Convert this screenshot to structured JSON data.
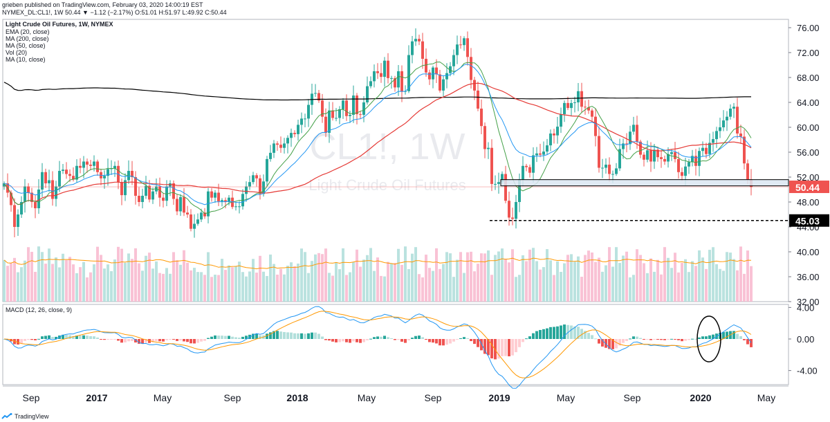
{
  "header": {
    "published_line": "grieben published on TradingView.com, February 03, 2020 14:00:19 EST",
    "quote_line": "NYMEX_DL:CL1!, 1W 50.44 ▼ −1.12 (−2.17%) O:51.01 H:51.97 L:49.92 C:50.44"
  },
  "legend": {
    "title": "Light Crude Oil Futures, 1W, NYMEX",
    "items": [
      "EMA (20, close)",
      "MA (200, close)",
      "MA (50, close)",
      "Vol (20)",
      "MA (10, close)"
    ]
  },
  "watermark": {
    "symbol": "CL1!, 1W",
    "name": "Light Crude Oil Futures"
  },
  "macd_label": "MACD (12, 26, close, 9)",
  "footer": {
    "brand": "TradingView"
  },
  "colors": {
    "up": "#26a69a",
    "down": "#ef5350",
    "ema20": "#2196f3",
    "ma200": "#000000",
    "ma50": "#e53935",
    "ma10": "#43a047",
    "vol_ma": "#ff9800",
    "macd_line": "#2196f3",
    "signal_line": "#ff9800"
  },
  "chart_data": {
    "type": "candlestick",
    "timeframe": "1W",
    "y_ticks": [
      "76.00",
      "72.00",
      "68.00",
      "64.00",
      "60.00",
      "56.00",
      "52.00",
      "48.00",
      "44.00",
      "40.00",
      "36.00",
      "32.00"
    ],
    "macd_ticks": [
      "4.00",
      "0.00",
      "-4.00"
    ],
    "x_ticks": [
      "Sep",
      "2017",
      "May",
      "Sep",
      "2018",
      "May",
      "Sep",
      "2019",
      "May",
      "Sep",
      "2020",
      "May"
    ],
    "price_range": [
      32,
      77
    ],
    "macd_range": [
      -6,
      4.5
    ],
    "last_price": 50.44,
    "horizontal_line": 45.03,
    "support_zone": [
      50.6,
      51.6
    ],
    "closes": [
      51,
      49.5,
      47.5,
      44,
      46,
      48,
      50.5,
      49.5,
      48,
      47,
      50,
      52.8,
      51,
      51.5,
      48.5,
      50.5,
      53,
      53.2,
      52.5,
      52.2,
      51.6,
      53.8,
      53.5,
      54.5,
      54,
      53.8,
      54.5,
      52.8,
      51.8,
      52.2,
      53.3,
      53.4,
      53.8,
      51.2,
      49.1,
      51.5,
      53,
      52,
      49,
      48,
      49,
      50.6,
      48.4,
      49.7,
      50.5,
      48.7,
      48.2,
      50.5,
      51,
      48.5,
      46.5,
      48.8,
      46.3,
      46,
      43.7,
      44.5,
      45.2,
      46.3,
      45.7,
      49.7,
      48.7,
      49.5,
      48.1,
      48.3,
      48,
      48.7,
      47.2,
      47.3,
      47.3,
      49.3,
      50.5,
      51.2,
      52.3,
      51.8,
      49.3,
      51.3,
      54.9,
      55.9,
      57.4,
      57.2,
      56.7,
      57.4,
      58.3,
      59.1,
      58.9,
      60.4,
      61.4,
      61.4,
      63.6,
      65.4,
      65.5,
      64.3,
      61.7,
      59.1,
      62.7,
      61.5,
      61.5,
      62.9,
      64.3,
      61.8,
      62,
      65.1,
      62.1,
      62,
      64,
      66.6,
      67.4,
      69,
      68.7,
      68.1,
      70.7,
      67.9,
      67.9,
      66.4,
      69,
      65.7,
      65.8,
      71.6,
      73.8,
      74.2,
      73.8,
      71,
      68.8,
      67.7,
      69.6,
      68.5,
      65.9,
      67.7,
      68.7,
      69.8,
      71.6,
      73.3,
      73.2,
      74.3,
      71.3,
      67.6,
      65.9,
      63,
      60.2,
      56.5,
      56.7,
      50.9,
      50.9,
      51.2,
      52.5,
      48.2,
      45.5,
      45.3,
      48,
      51.6,
      53.8,
      53.6,
      52.7,
      55.5,
      55.8,
      55.6,
      56.1,
      57.1,
      59,
      58.7,
      60.1,
      62.1,
      63.9,
      63.1,
      63.9,
      64,
      65.8,
      63.3,
      63.2,
      62.7,
      61.7,
      58.6,
      53.5,
      53.5,
      54,
      52.5,
      52.5,
      53.4,
      56.5,
      57.4,
      57.3,
      59.3,
      60.4,
      57.7,
      55.6,
      54.8,
      56.3,
      54.5,
      56.4,
      55.2,
      54.9,
      54.5,
      55.7,
      56,
      54.9,
      52.8,
      52.2,
      53.7,
      54.4,
      55.4,
      53.8,
      56.2,
      56.7,
      55.7,
      57.5,
      58.1,
      59.4,
      60,
      61.1,
      61.7,
      63,
      63.3,
      59,
      58.5,
      54.2,
      51.6,
      50.4
    ],
    "macd_hist_sign": "negative at right edge"
  }
}
